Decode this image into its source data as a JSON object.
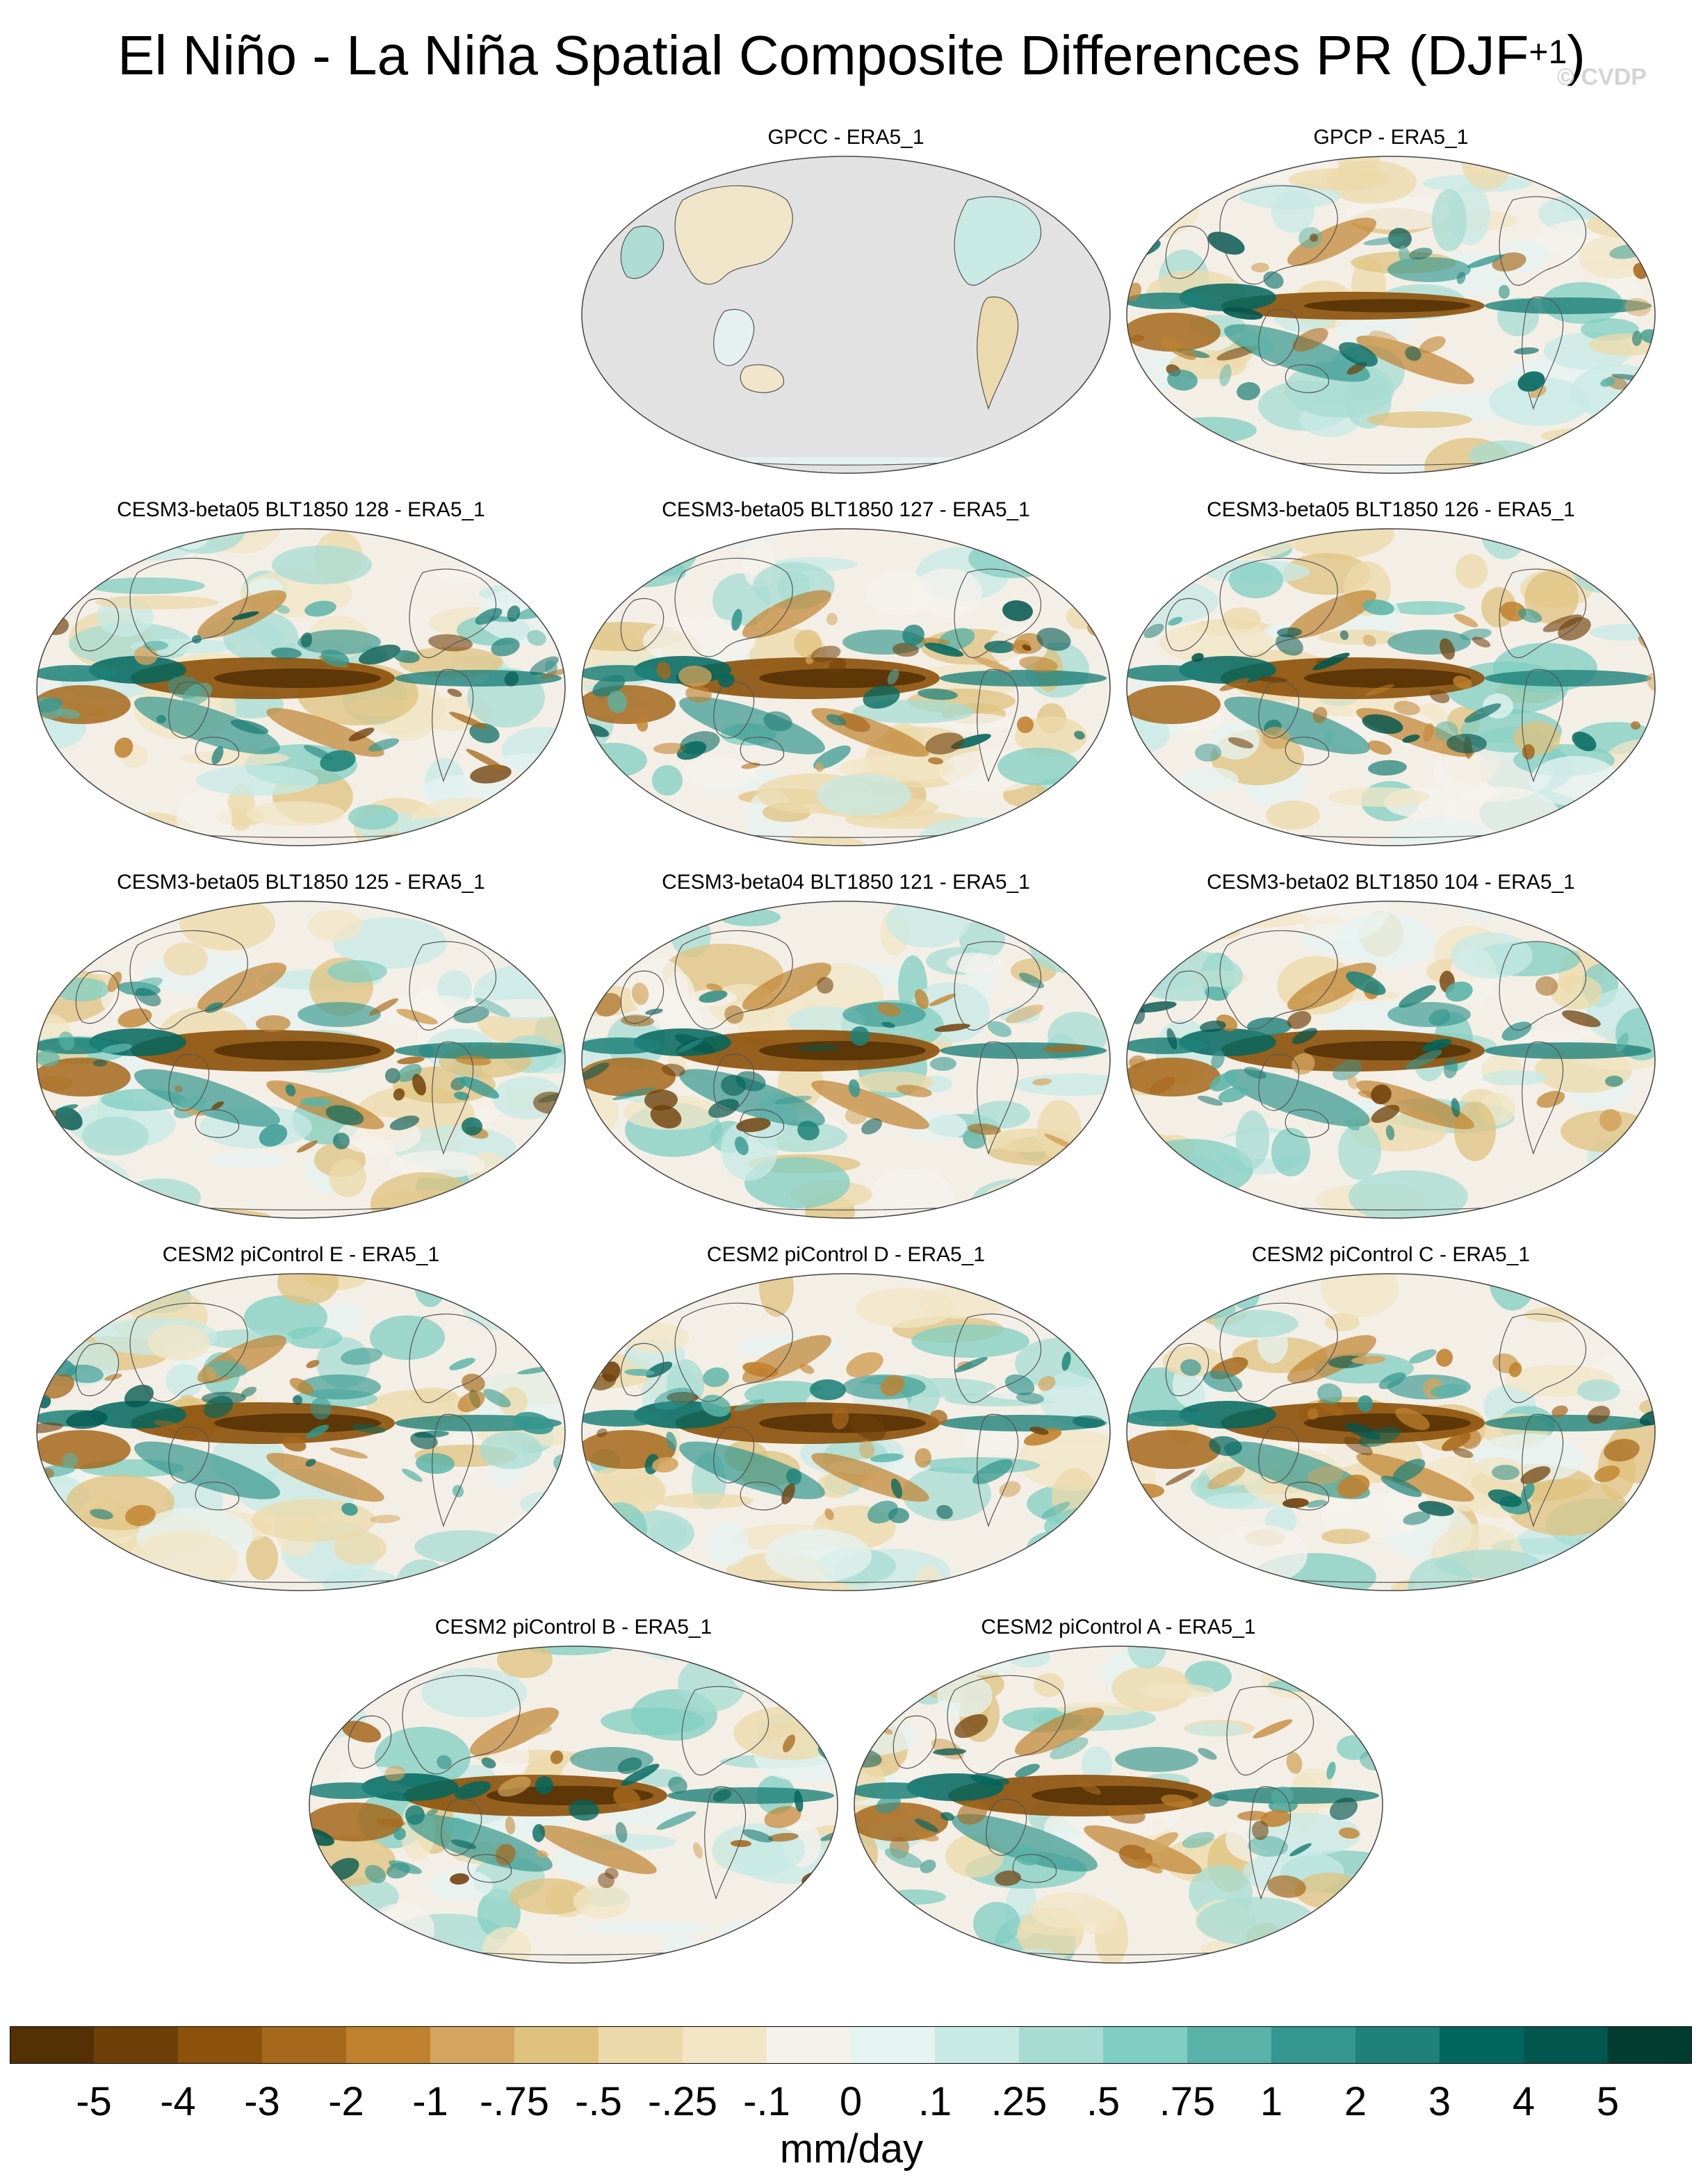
{
  "title_main": "El Niño - La Niña Spatial Composite Differences PR (DJF",
  "title_sup": "+1",
  "title_close": ")",
  "watermark": "© CVDP",
  "panels": [
    {
      "title": "GPCC - ERA5_1",
      "kind": "land"
    },
    {
      "title": "GPCP - ERA5_1",
      "kind": "obs"
    },
    {
      "title": "CESM3-beta05 BLT1850 128 - ERA5_1",
      "kind": "model"
    },
    {
      "title": "CESM3-beta05 BLT1850 127 - ERA5_1",
      "kind": "model"
    },
    {
      "title": "CESM3-beta05 BLT1850 126 - ERA5_1",
      "kind": "model"
    },
    {
      "title": "CESM3-beta05 BLT1850 125 - ERA5_1",
      "kind": "model"
    },
    {
      "title": "CESM3-beta04 BLT1850 121 - ERA5_1",
      "kind": "model"
    },
    {
      "title": "CESM3-beta02 BLT1850 104 - ERA5_1",
      "kind": "model"
    },
    {
      "title": "CESM2 piControl E - ERA5_1",
      "kind": "model"
    },
    {
      "title": "CESM2 piControl D - ERA5_1",
      "kind": "model"
    },
    {
      "title": "CESM2 piControl C - ERA5_1",
      "kind": "model"
    },
    {
      "title": "CESM2 piControl B - ERA5_1",
      "kind": "model"
    },
    {
      "title": "CESM2 piControl A - ERA5_1",
      "kind": "model"
    }
  ],
  "colorbar": {
    "colors": [
      "#543005",
      "#6f3f09",
      "#8c510a",
      "#a6681c",
      "#bf812d",
      "#d3a55f",
      "#dfc27d",
      "#ecd9a9",
      "#f2e6c6",
      "#f5f2ec",
      "#e5f3f1",
      "#c7eae5",
      "#a7dcd3",
      "#80cdc1",
      "#5ab3a8",
      "#35978f",
      "#1f8179",
      "#01665e",
      "#01564e",
      "#003c30"
    ],
    "ticks": [
      "-5",
      "-4",
      "-3",
      "-2",
      "-1",
      "-.75",
      "-.5",
      "-.25",
      "-.1",
      "0",
      ".1",
      ".25",
      ".5",
      ".75",
      "1",
      "2",
      "3",
      "4",
      "5"
    ],
    "units": "mm/day"
  }
}
